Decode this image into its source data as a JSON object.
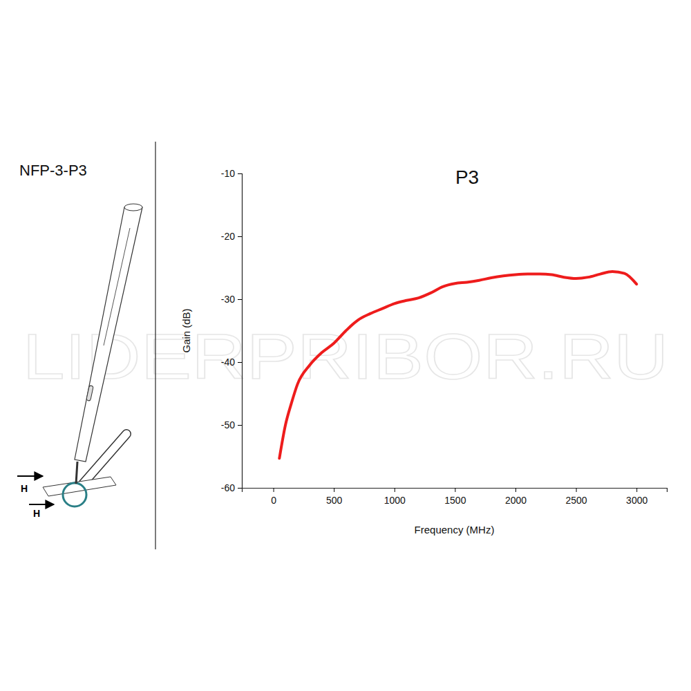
{
  "chart_data": {
    "type": "line",
    "title": "P3",
    "x_label": "Frequency (MHz)",
    "y_label": "Gain (dB)",
    "x": [
      50,
      100,
      150,
      200,
      300,
      400,
      500,
      600,
      700,
      800,
      900,
      1000,
      1100,
      1200,
      1300,
      1400,
      1500,
      1600,
      1700,
      1800,
      1900,
      2000,
      2100,
      2200,
      2300,
      2400,
      2500,
      2600,
      2700,
      2800,
      2900,
      3000
    ],
    "series": [
      {
        "name": "P3",
        "color": "#ee1c1c",
        "values": [
          -55.3,
          -50,
          -46.5,
          -43.5,
          -40.5,
          -38.5,
          -37,
          -35,
          -33.3,
          -32.3,
          -31.5,
          -30.7,
          -30.2,
          -29.8,
          -29,
          -28,
          -27.5,
          -27.3,
          -27,
          -26.6,
          -26.3,
          -26.1,
          -26,
          -26,
          -26.1,
          -26.5,
          -26.7,
          -26.5,
          -26,
          -25.6,
          -25.9,
          -27.6
        ]
      }
    ],
    "xlim": [
      -260,
      3250
    ],
    "xticks": [
      0,
      500,
      1000,
      1500,
      2000,
      2500,
      3000
    ],
    "ylim": [
      -60,
      -10
    ],
    "yticks": [
      -60,
      -50,
      -40,
      -30,
      -20,
      -10
    ],
    "grid": false
  },
  "panel": {
    "label": "NFP-3-P3",
    "field_labels": [
      "H",
      "H"
    ]
  },
  "watermark": "LIDERPRIBOR.RU"
}
